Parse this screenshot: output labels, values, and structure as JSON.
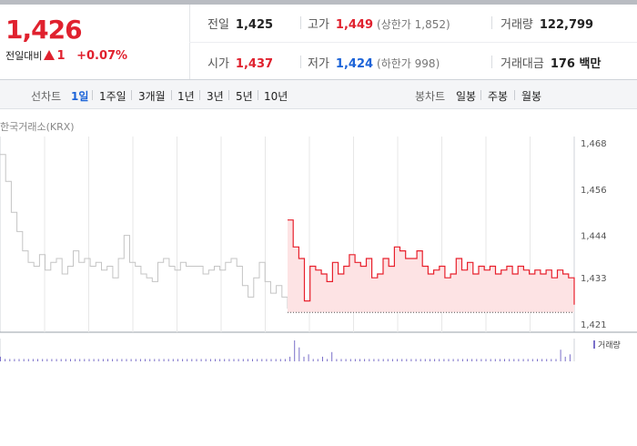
{
  "quote": {
    "price": "1,426",
    "change_label": "전일대비",
    "change_value": "1",
    "change_pct": "+0.07%",
    "prev_close_label": "전일",
    "prev_close": "1,425",
    "high_label": "고가",
    "high": "1,449",
    "upper_limit": "(상한가 1,852)",
    "volume_label": "거래량",
    "volume": "122,799",
    "open_label": "시가",
    "open": "1,437",
    "low_label": "저가",
    "low": "1,424",
    "lower_limit": "(하한가 998)",
    "amount_label": "거래대금",
    "amount": "176 백만"
  },
  "tabs": {
    "line_label": "선차트",
    "line": [
      "1일",
      "1주일",
      "3개월",
      "1년",
      "3년",
      "5년",
      "10년"
    ],
    "active": "1일",
    "candle_label": "봉차트",
    "candle": [
      "일봉",
      "주봉",
      "월봉"
    ]
  },
  "chart": {
    "market": "한국거래소(KRX)",
    "volume_legend": "거래량",
    "colors": {
      "prev": "#c4c4c4",
      "today": "#e8202c",
      "fill": "#fde3e4",
      "volume": "#7a6fc9",
      "grid": "#e7e7e7"
    }
  },
  "chart_data": {
    "type": "line",
    "ylim": [
      1421,
      1468
    ],
    "yticks": [
      "1,421",
      "1,433",
      "1,444",
      "1,456",
      "1,468"
    ],
    "series": [
      {
        "values": [
          1465,
          1458,
          1450,
          1445,
          1440,
          1437,
          1436,
          1439,
          1435,
          1437,
          1438,
          1434,
          1436,
          1440,
          1437,
          1438,
          1436,
          1437,
          1435,
          1436,
          1433,
          1438,
          1444,
          1437,
          1436,
          1434,
          1433,
          1432,
          1437,
          1438,
          1436,
          1435,
          1437,
          1436,
          1436,
          1436,
          1434,
          1435,
          1436,
          1435,
          1437,
          1438,
          1436,
          1431,
          1428,
          1433,
          1437,
          1432,
          1429,
          1431,
          1428,
          1425
        ]
      },
      {
        "values": [
          1448,
          1441,
          1438,
          1427,
          1436,
          1435,
          1434,
          1432,
          1437,
          1434,
          1436,
          1439,
          1437,
          1436,
          1438,
          1433,
          1434,
          1438,
          1436,
          1441,
          1440,
          1438,
          1438,
          1440,
          1436,
          1434,
          1435,
          1436,
          1433,
          1434,
          1438,
          1435,
          1437,
          1434,
          1436,
          1435,
          1436,
          1434,
          1435,
          1436,
          1434,
          1436,
          1435,
          1434,
          1435,
          1434,
          1435,
          1433,
          1435,
          1434,
          1433,
          1426
        ]
      }
    ],
    "volume_values": [
      2,
      1,
      1,
      1,
      1,
      1,
      1,
      1,
      1,
      1,
      1,
      1,
      1,
      1,
      1,
      1,
      1,
      1,
      1,
      1,
      1,
      1,
      1,
      1,
      1,
      1,
      1,
      1,
      1,
      1,
      1,
      1,
      1,
      1,
      1,
      1,
      1,
      1,
      1,
      1,
      1,
      1,
      1,
      1,
      1,
      1,
      1,
      1,
      1,
      1,
      1,
      1,
      1,
      1,
      1,
      1,
      1,
      1,
      1,
      1,
      1,
      1,
      2,
      9,
      6,
      2,
      3,
      1,
      1,
      2,
      1,
      4,
      1,
      1,
      1,
      1,
      1,
      1,
      1,
      1,
      1,
      1,
      1,
      1,
      1,
      1,
      1,
      1,
      1,
      1,
      1,
      1,
      1,
      1,
      1,
      1,
      1,
      1,
      1,
      1,
      1,
      1,
      1,
      1,
      1,
      1,
      1,
      1,
      1,
      1,
      1,
      1,
      1,
      1,
      1,
      1,
      1,
      1,
      1,
      1,
      5,
      2,
      3
    ]
  }
}
